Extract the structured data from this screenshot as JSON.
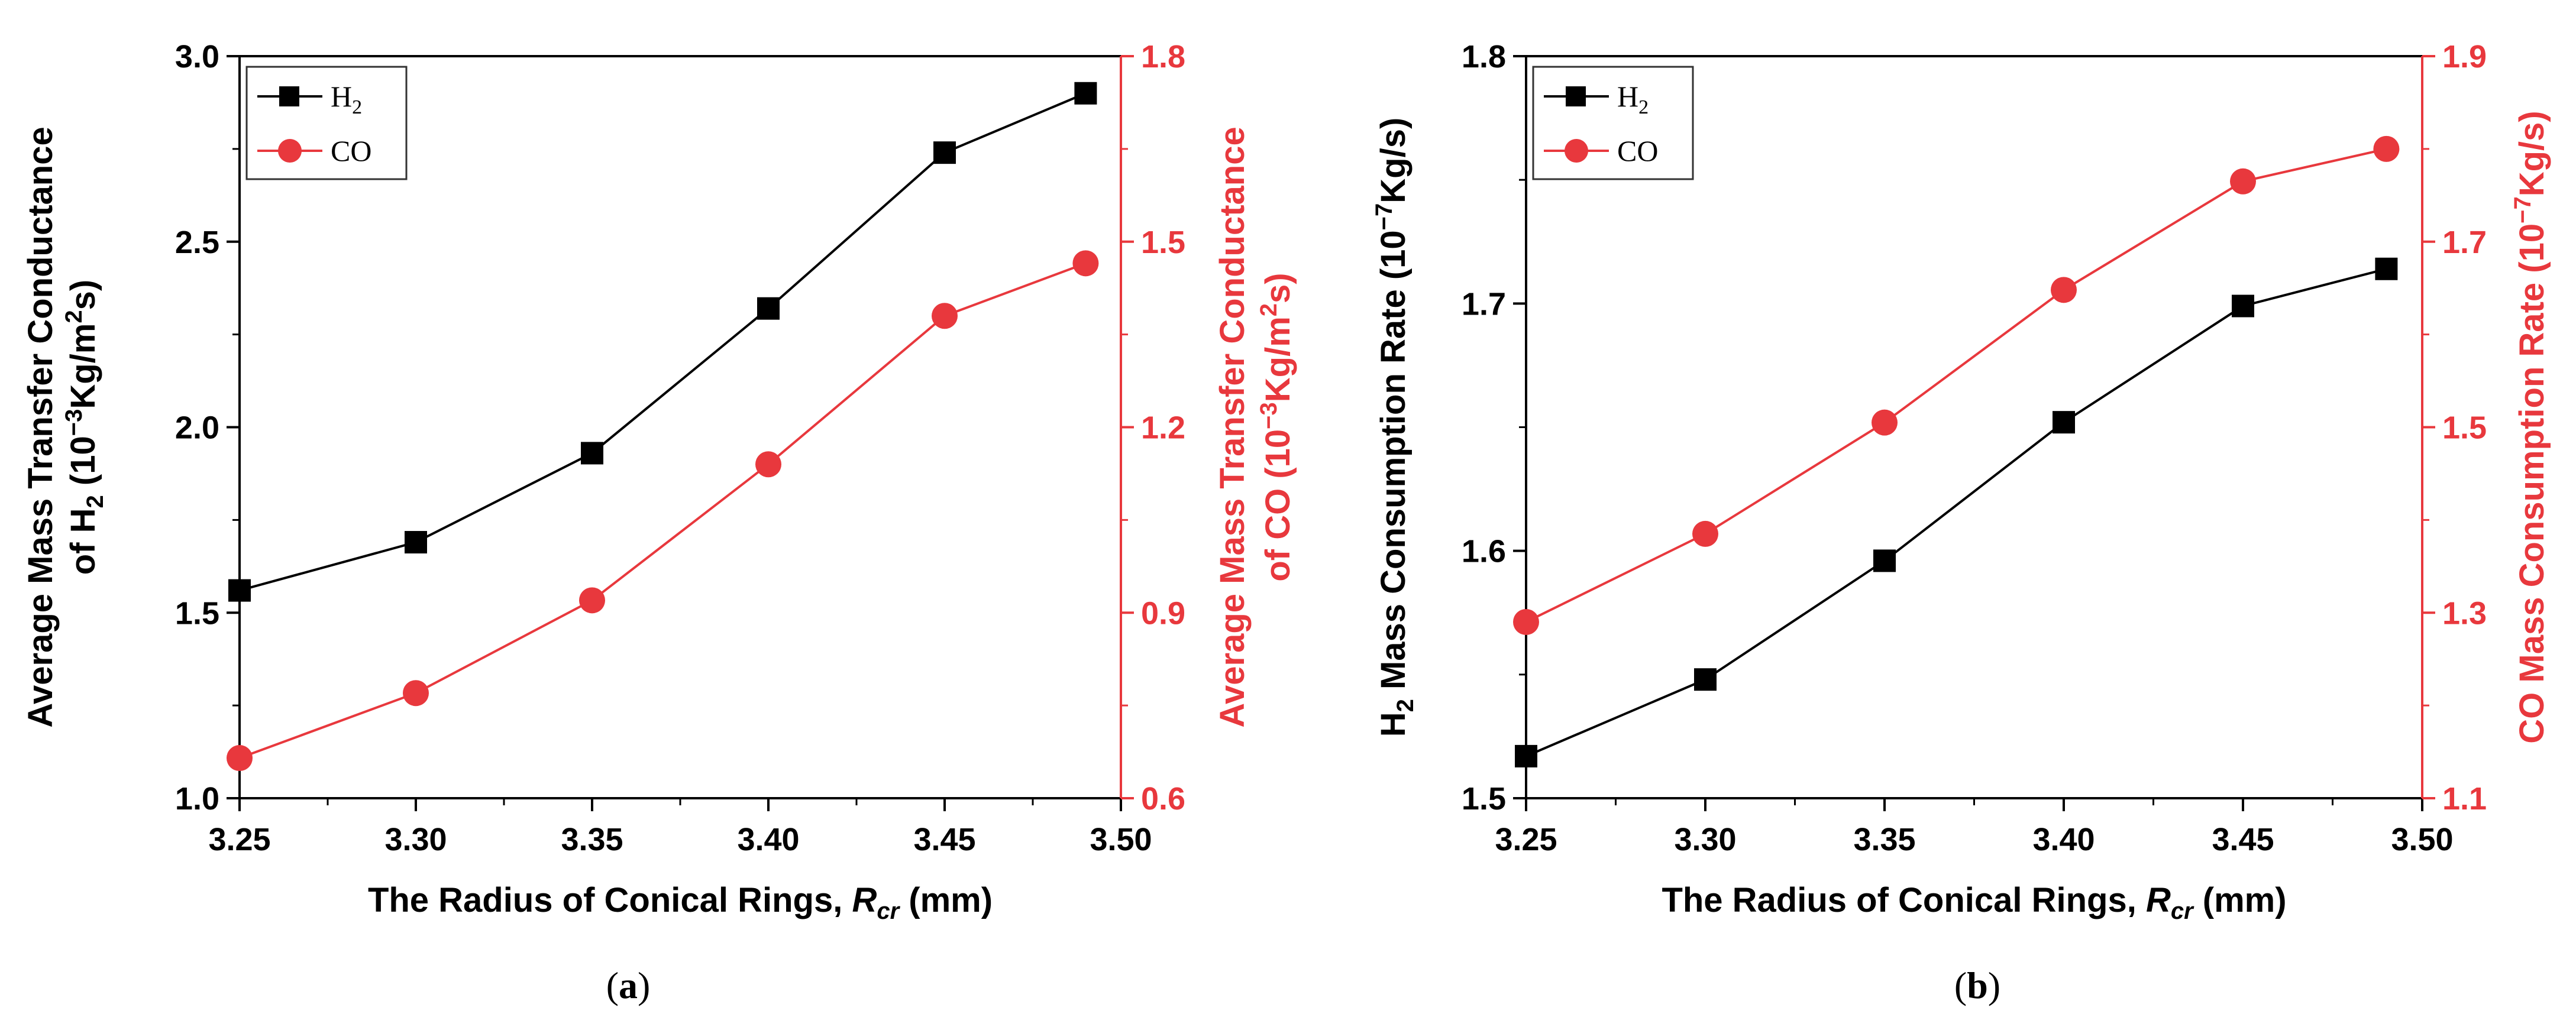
{
  "colors": {
    "h2": "#000000",
    "co": "#e8383d"
  },
  "chart_data": [
    {
      "type": "line",
      "panel": "(a)",
      "caption_open": "(",
      "caption_letter": "a",
      "caption_close": ")",
      "x": [
        3.25,
        3.3,
        3.35,
        3.4,
        3.45,
        3.49
      ],
      "xlim": [
        3.25,
        3.5
      ],
      "xticks": [
        "3.25",
        "3.30",
        "3.35",
        "3.40",
        "3.45",
        "3.50"
      ],
      "xlabel_pre": "The Radius of Conical Rings, ",
      "xlabel_sym": "R",
      "xlabel_sub": "cr",
      "xlabel_post": " (mm)",
      "ylabel_left_line1": "Average Mass Transfer Conductance",
      "ylabel_left_line2": [
        "of H",
        "2",
        " (10",
        "−3",
        "Kg/m",
        "2",
        "s)"
      ],
      "ylabel_right_line1": "Average Mass Transfer Conductance",
      "ylabel_right_line2": [
        "of CO (10",
        "−3",
        "Kg/m",
        "2",
        "s)"
      ],
      "ylim_left": [
        1.0,
        3.0
      ],
      "yticks_left": [
        "1.0",
        "1.5",
        "2.0",
        "2.5",
        "3.0"
      ],
      "ylim_right": [
        0.6,
        1.8
      ],
      "yticks_right": [
        "0.6",
        "0.9",
        "1.2",
        "1.5",
        "1.8"
      ],
      "series": [
        {
          "name": "H",
          "sub": "2",
          "axis": "left",
          "marker": "square",
          "values": [
            1.56,
            1.69,
            1.93,
            2.32,
            2.74,
            2.9
          ]
        },
        {
          "name": "CO",
          "sub": "",
          "axis": "right",
          "marker": "circle",
          "values": [
            0.665,
            0.77,
            0.92,
            1.14,
            1.38,
            1.465
          ]
        }
      ],
      "legend_position": "top-left"
    },
    {
      "type": "line",
      "panel": "(b)",
      "caption_open": "(",
      "caption_letter": "b",
      "caption_close": ")",
      "x": [
        3.25,
        3.3,
        3.35,
        3.4,
        3.45,
        3.49
      ],
      "xlim": [
        3.25,
        3.5
      ],
      "xticks": [
        "3.25",
        "3.30",
        "3.35",
        "3.40",
        "3.45",
        "3.50"
      ],
      "xlabel_pre": "The Radius of Conical Rings, ",
      "xlabel_sym": "R",
      "xlabel_sub": "cr",
      "xlabel_post": " (mm)",
      "ylabel_left": [
        "H",
        "2",
        " Mass Consumption Rate (10",
        "−7",
        "Kg/s)"
      ],
      "ylabel_right": [
        "CO Mass Consumption Rate (10",
        "−7",
        "Kg/s)"
      ],
      "ylim_left": [
        1.5,
        1.8
      ],
      "yticks_left": [
        "1.5",
        "1.6",
        "1.7",
        "1.8"
      ],
      "ylim_right": [
        1.1,
        1.9
      ],
      "yticks_right": [
        "1.1",
        "1.3",
        "1.5",
        "1.7",
        "1.9"
      ],
      "series": [
        {
          "name": "H",
          "sub": "2",
          "axis": "left",
          "marker": "square",
          "values": [
            1.517,
            1.548,
            1.596,
            1.652,
            1.699,
            1.714
          ]
        },
        {
          "name": "CO",
          "sub": "",
          "axis": "right",
          "marker": "circle",
          "values": [
            1.29,
            1.385,
            1.505,
            1.648,
            1.765,
            1.8
          ]
        }
      ],
      "legend_position": "top-left"
    }
  ]
}
